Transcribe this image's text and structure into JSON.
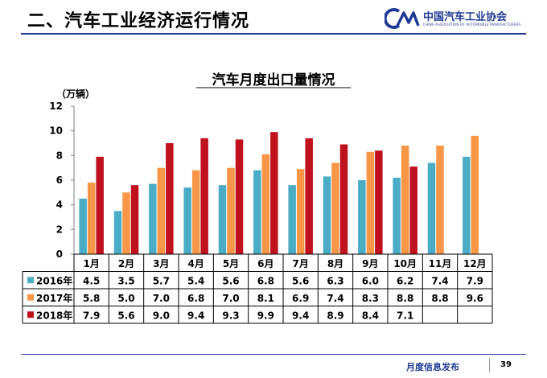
{
  "header": {
    "title": "二、汽车工业经济运行情况"
  },
  "logo": {
    "cn": "中国汽车工业协会",
    "en": "CHINA ASSOCIATION OF AUTOMOBILE MANUFACTURERS"
  },
  "footer": {
    "text": "月度信息发布",
    "page": "39"
  },
  "colors": {
    "s2016": "#4bacc6",
    "s2017": "#f79646",
    "s2018": "#c0111f",
    "brand": "#1f3a93"
  },
  "chart_data": {
    "type": "bar",
    "title": "汽车月度出口量情况",
    "ylabel": "（万辆）",
    "ylim": [
      0,
      12
    ],
    "yticks": [
      "0",
      "2",
      "4",
      "6",
      "8",
      "10",
      "12"
    ],
    "grid": false,
    "legend": "table-left",
    "categories": [
      "1月",
      "2月",
      "3月",
      "4月",
      "5月",
      "6月",
      "7月",
      "8月",
      "9月",
      "10月",
      "11月",
      "12月"
    ],
    "series": [
      {
        "name": "2016年",
        "values": [
          4.5,
          3.5,
          5.7,
          5.4,
          5.6,
          6.8,
          5.6,
          6.3,
          6.0,
          6.2,
          7.4,
          7.9
        ],
        "labels": [
          "4.5",
          "3.5",
          "5.7",
          "5.4",
          "5.6",
          "6.8",
          "5.6",
          "6.3",
          "6.0",
          "6.2",
          "7.4",
          "7.9"
        ]
      },
      {
        "name": "2017年",
        "values": [
          5.8,
          5.0,
          7.0,
          6.8,
          7.0,
          8.1,
          6.9,
          7.4,
          8.3,
          8.8,
          8.8,
          9.6
        ],
        "labels": [
          "5.8",
          "5.0",
          "7.0",
          "6.8",
          "7.0",
          "8.1",
          "6.9",
          "7.4",
          "8.3",
          "8.8",
          "8.8",
          "9.6"
        ]
      },
      {
        "name": "2018年",
        "values": [
          7.9,
          5.6,
          9.0,
          9.4,
          9.3,
          9.9,
          9.4,
          8.9,
          8.4,
          7.1,
          null,
          null
        ],
        "labels": [
          "7.9",
          "5.6",
          "9.0",
          "9.4",
          "9.3",
          "9.9",
          "9.4",
          "8.9",
          "8.4",
          "7.1",
          "",
          ""
        ]
      }
    ]
  }
}
